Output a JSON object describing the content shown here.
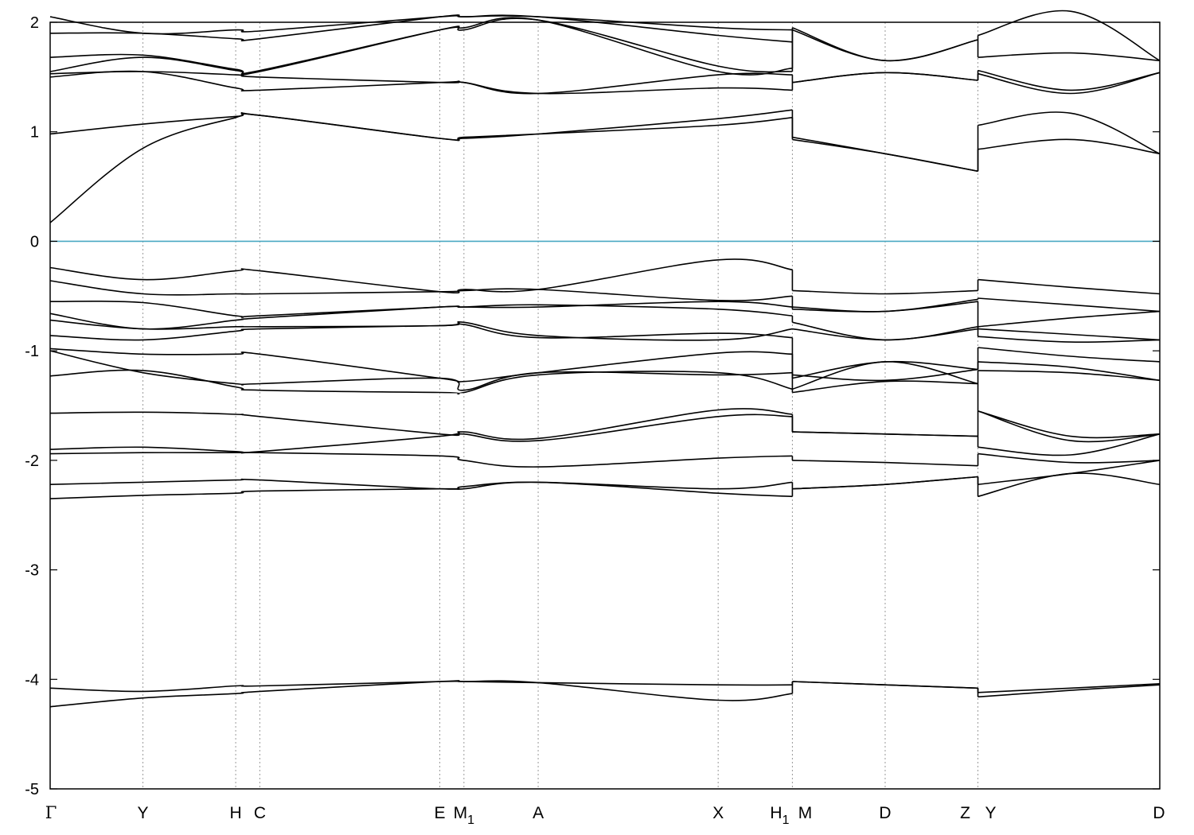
{
  "chart_data": {
    "type": "line",
    "title": "",
    "xlabel": "",
    "ylabel": "",
    "ylim": [
      -5,
      2
    ],
    "yticks": [
      -5,
      -4,
      -3,
      -2,
      -1,
      0,
      1,
      2
    ],
    "ytick_labels": [
      "-5",
      "-4",
      "-3",
      "-2",
      "-1",
      "0",
      "1",
      "2"
    ],
    "grid": false,
    "fermi_level": 0,
    "colors": {
      "bands": "#000000",
      "fermi_line": "#4aa8c2",
      "kpoint_lines": "#9a9a9a"
    },
    "kpoints": [
      {
        "label": "Γ",
        "sub": "",
        "x": 0.0
      },
      {
        "label": "Y",
        "sub": "",
        "x": 0.5
      },
      {
        "label": "H",
        "sub": "",
        "x": 1.0
      },
      {
        "label": "C",
        "sub": "",
        "x": 1.13
      },
      {
        "label": "E",
        "sub": "",
        "x": 2.1
      },
      {
        "label": "M",
        "sub": "1",
        "x": 2.23
      },
      {
        "label": "A",
        "sub": "",
        "x": 2.63
      },
      {
        "label": "X",
        "sub": "",
        "x": 3.6
      },
      {
        "label": "H",
        "sub": "1",
        "x": 4.0
      },
      {
        "label": "M",
        "sub": "",
        "x": 4.0
      },
      {
        "label": "D",
        "sub": "",
        "x": 4.5
      },
      {
        "label": "Z",
        "sub": "",
        "x": 5.0
      },
      {
        "label": "Y",
        "sub": "",
        "x": 5.0
      },
      {
        "label": "D",
        "sub": "",
        "x": 5.98
      }
    ],
    "xlim": [
      0,
      5.98
    ],
    "segments": [
      {
        "x": [
          0.0,
          0.5,
          1.0,
          1.13,
          2.1,
          2.23,
          2.63,
          3.6,
          4.0
        ],
        "bands": [
          [
            -4.25,
            -4.17,
            -4.13,
            -4.11,
            -4.02,
            -4.02,
            -4.03,
            -4.19,
            -4.13
          ],
          [
            -4.08,
            -4.11,
            -4.06,
            -4.06,
            -4.02,
            -4.02,
            -4.03,
            -4.05,
            -4.05
          ],
          [
            -2.35,
            -2.32,
            -2.3,
            -2.28,
            -2.26,
            -2.26,
            -2.2,
            -2.3,
            -2.33
          ],
          [
            -2.22,
            -2.2,
            -2.18,
            -2.18,
            -2.26,
            -2.24,
            -2.2,
            -2.26,
            -2.2
          ],
          [
            -1.94,
            -1.93,
            -1.93,
            -1.93,
            -1.96,
            -2.0,
            -2.06,
            -1.98,
            -1.96
          ],
          [
            -1.9,
            -1.88,
            -1.92,
            -1.92,
            -1.78,
            -1.74,
            -1.8,
            -1.54,
            -1.58
          ],
          [
            -1.57,
            -1.56,
            -1.58,
            -1.6,
            -1.76,
            -1.76,
            -1.82,
            -1.6,
            -1.6
          ],
          [
            -1.23,
            -1.18,
            -1.33,
            -1.36,
            -1.38,
            -1.38,
            -1.22,
            -1.2,
            -1.35
          ],
          [
            -1.0,
            -1.2,
            -1.3,
            -1.3,
            -1.25,
            -1.36,
            -1.2,
            -1.22,
            -1.2
          ],
          [
            -0.98,
            -1.03,
            -1.03,
            -1.03,
            -1.25,
            -1.28,
            -1.2,
            -1.02,
            -1.03
          ],
          [
            -0.86,
            -0.9,
            -0.82,
            -0.8,
            -0.77,
            -0.76,
            -0.88,
            -0.84,
            -0.88
          ],
          [
            -0.72,
            -0.8,
            -0.78,
            -0.78,
            -0.77,
            -0.74,
            -0.86,
            -0.9,
            -0.8
          ],
          [
            -0.66,
            -0.8,
            -0.72,
            -0.7,
            -0.6,
            -0.6,
            -0.58,
            -0.62,
            -0.68
          ],
          [
            -0.55,
            -0.56,
            -0.68,
            -0.68,
            -0.6,
            -0.6,
            -0.6,
            -0.55,
            -0.6
          ],
          [
            -0.36,
            -0.48,
            -0.48,
            -0.48,
            -0.46,
            -0.45,
            -0.44,
            -0.54,
            -0.5
          ],
          [
            -0.24,
            -0.35,
            -0.27,
            -0.27,
            -0.46,
            -0.44,
            -0.44,
            -0.17,
            -0.26
          ],
          [
            0.17,
            0.85,
            1.13,
            1.15,
            0.94,
            0.94,
            0.98,
            1.12,
            1.2
          ],
          [
            0.98,
            1.07,
            1.14,
            1.15,
            0.94,
            0.95,
            0.98,
            1.06,
            1.13
          ],
          [
            1.5,
            1.55,
            1.4,
            1.38,
            1.45,
            1.45,
            1.35,
            1.4,
            1.38
          ],
          [
            1.53,
            1.55,
            1.52,
            1.5,
            1.45,
            1.45,
            1.35,
            1.52,
            1.52
          ],
          [
            1.55,
            1.68,
            1.56,
            1.55,
            1.93,
            1.95,
            2.02,
            1.55,
            1.58
          ],
          [
            1.68,
            1.7,
            1.57,
            1.56,
            1.93,
            1.93,
            2.02,
            1.6,
            1.55
          ],
          [
            1.9,
            1.9,
            1.85,
            1.85,
            2.05,
            2.05,
            2.05,
            1.88,
            1.82
          ],
          [
            2.05,
            1.9,
            1.93,
            1.92,
            2.05,
            2.05,
            2.05,
            1.95,
            1.93
          ]
        ]
      },
      {
        "x": [
          4.0,
          4.5,
          5.0
        ],
        "bands": [
          [
            -4.02,
            -4.05,
            -4.08
          ],
          [
            -4.02,
            -4.05,
            -4.08
          ],
          [
            -2.26,
            -2.22,
            -2.15
          ],
          [
            -2.26,
            -2.22,
            -2.15
          ],
          [
            -2.0,
            -2.02,
            -2.05
          ],
          [
            -1.74,
            -1.76,
            -1.78
          ],
          [
            -1.74,
            -1.76,
            -1.78
          ],
          [
            -1.38,
            -1.28,
            -1.3
          ],
          [
            -1.35,
            -1.1,
            -1.3
          ],
          [
            -1.25,
            -1.1,
            -1.17
          ],
          [
            -1.22,
            -1.27,
            -1.17
          ],
          [
            -0.8,
            -0.9,
            -0.8
          ],
          [
            -0.74,
            -0.9,
            -0.78
          ],
          [
            -0.62,
            -0.64,
            -0.55
          ],
          [
            -0.6,
            -0.64,
            -0.53
          ],
          [
            -0.45,
            -0.48,
            -0.45
          ],
          [
            0.93,
            0.8,
            0.64
          ],
          [
            0.95,
            0.8,
            0.64
          ],
          [
            1.45,
            1.54,
            1.47
          ],
          [
            1.45,
            1.54,
            1.47
          ],
          [
            1.93,
            1.65,
            1.84
          ],
          [
            1.95,
            1.65,
            1.84
          ]
        ]
      },
      {
        "x": [
          5.0,
          5.5,
          5.98
        ],
        "bands": [
          [
            -4.16,
            -4.1,
            -4.05
          ],
          [
            -4.12,
            -4.08,
            -4.04
          ],
          [
            -2.33,
            -2.12,
            -2.22
          ],
          [
            -2.22,
            -2.12,
            -2.0
          ],
          [
            -1.94,
            -2.02,
            -2.0
          ],
          [
            -1.88,
            -1.95,
            -1.76
          ],
          [
            -1.55,
            -1.82,
            -1.76
          ],
          [
            -1.55,
            -1.78,
            -1.76
          ],
          [
            -1.18,
            -1.2,
            -1.27
          ],
          [
            -1.1,
            -1.15,
            -1.27
          ],
          [
            -0.97,
            -1.05,
            -1.1
          ],
          [
            -0.87,
            -0.92,
            -0.9
          ],
          [
            -0.8,
            -0.85,
            -0.9
          ],
          [
            -0.78,
            -0.7,
            -0.64
          ],
          [
            -0.52,
            -0.58,
            -0.64
          ],
          [
            -0.35,
            -0.42,
            -0.48
          ],
          [
            0.84,
            0.93,
            0.8
          ],
          [
            1.06,
            1.17,
            0.8
          ],
          [
            1.53,
            1.35,
            1.54
          ],
          [
            1.56,
            1.38,
            1.54
          ],
          [
            1.68,
            1.72,
            1.65
          ],
          [
            1.88,
            2.1,
            1.65
          ]
        ]
      }
    ]
  }
}
